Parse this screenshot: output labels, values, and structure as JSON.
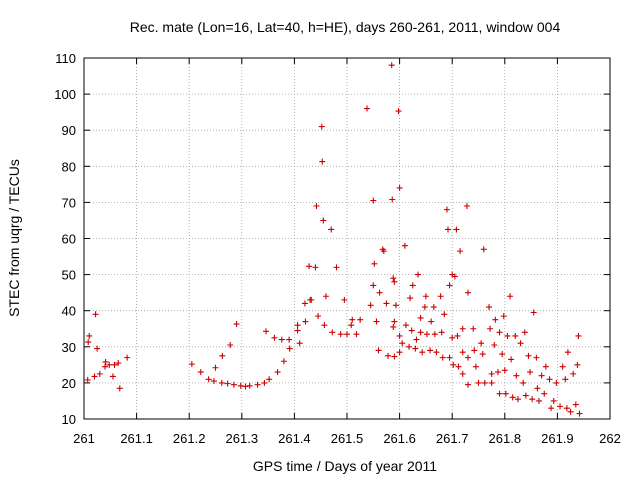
{
  "chart_data": {
    "type": "scatter",
    "title": "Rec. mate (Lon=16, Lat=40, h=HE), days 260-261, 2011, window 004",
    "xlabel": "GPS time / Days of year 2011",
    "ylabel": "STEC from uqrg / TECUs",
    "xlim": [
      261,
      262
    ],
    "ylim": [
      10,
      110
    ],
    "xticks": [
      "261",
      "261.1",
      "261.2",
      "261.3",
      "261.4",
      "261.5",
      "261.6",
      "261.7",
      "261.8",
      "261.9",
      "262"
    ],
    "yticks": [
      "10",
      "20",
      "30",
      "40",
      "50",
      "60",
      "70",
      "80",
      "90",
      "100",
      "110"
    ],
    "grid": true,
    "marker": "plus",
    "color": "#cc0000",
    "points": [
      [
        261.007,
        20.8
      ],
      [
        261.008,
        31.3
      ],
      [
        261.01,
        33.0
      ],
      [
        261.02,
        21.8
      ],
      [
        261.022,
        39.0
      ],
      [
        261.025,
        29.5
      ],
      [
        261.03,
        22.5
      ],
      [
        261.04,
        24.5
      ],
      [
        261.041,
        25.8
      ],
      [
        261.048,
        25.0
      ],
      [
        261.055,
        21.8
      ],
      [
        261.058,
        25.0
      ],
      [
        261.065,
        25.5
      ],
      [
        261.068,
        18.5
      ],
      [
        261.082,
        27.0
      ],
      [
        261.205,
        25.2
      ],
      [
        261.222,
        23.0
      ],
      [
        261.237,
        21.0
      ],
      [
        261.247,
        20.5
      ],
      [
        261.25,
        24.2
      ],
      [
        261.262,
        20.0
      ],
      [
        261.263,
        27.5
      ],
      [
        261.273,
        19.8
      ],
      [
        261.278,
        30.5
      ],
      [
        261.285,
        19.5
      ],
      [
        261.29,
        36.3
      ],
      [
        261.298,
        19.2
      ],
      [
        261.307,
        19.0
      ],
      [
        261.315,
        19.2
      ],
      [
        261.33,
        19.5
      ],
      [
        261.343,
        20.0
      ],
      [
        261.346,
        34.3
      ],
      [
        261.352,
        21.0
      ],
      [
        261.362,
        32.5
      ],
      [
        261.368,
        23.0
      ],
      [
        261.376,
        32.0
      ],
      [
        261.38,
        26.0
      ],
      [
        261.39,
        32.0
      ],
      [
        261.391,
        29.5
      ],
      [
        261.406,
        34.5
      ],
      [
        261.406,
        36.0
      ],
      [
        261.41,
        31.0
      ],
      [
        261.42,
        42.0
      ],
      [
        261.421,
        37.0
      ],
      [
        261.428,
        52.3
      ],
      [
        261.43,
        43.0
      ],
      [
        261.432,
        43.0
      ],
      [
        261.44,
        52.0
      ],
      [
        261.442,
        69.0
      ],
      [
        261.445,
        38.5
      ],
      [
        261.452,
        91.0
      ],
      [
        261.453,
        81.3
      ],
      [
        261.455,
        65.0
      ],
      [
        261.457,
        36.0
      ],
      [
        261.46,
        44.0
      ],
      [
        261.47,
        62.5
      ],
      [
        261.472,
        34.0
      ],
      [
        261.48,
        52.0
      ],
      [
        261.488,
        33.5
      ],
      [
        261.495,
        43.0
      ],
      [
        261.5,
        33.5
      ],
      [
        261.508,
        36.0
      ],
      [
        261.51,
        37.5
      ],
      [
        261.518,
        33.5
      ],
      [
        261.525,
        37.5
      ],
      [
        261.538,
        96.0
      ],
      [
        261.545,
        41.5
      ],
      [
        261.55,
        47.0
      ],
      [
        261.55,
        70.5
      ],
      [
        261.552,
        53.0
      ],
      [
        261.556,
        37.0
      ],
      [
        261.56,
        29.0
      ],
      [
        261.562,
        45.0
      ],
      [
        261.568,
        57.0
      ],
      [
        261.57,
        56.5
      ],
      [
        261.575,
        42.0
      ],
      [
        261.578,
        27.5
      ],
      [
        261.585,
        108.0
      ],
      [
        261.586,
        70.8
      ],
      [
        261.588,
        49.0
      ],
      [
        261.59,
        48.0
      ],
      [
        261.588,
        35.5
      ],
      [
        261.59,
        37.0
      ],
      [
        261.59,
        27.3
      ],
      [
        261.593,
        41.5
      ],
      [
        261.598,
        95.3
      ],
      [
        261.6,
        74.0
      ],
      [
        261.6,
        33.0
      ],
      [
        261.605,
        31.0
      ],
      [
        261.6,
        28.5
      ],
      [
        261.61,
        58.0
      ],
      [
        261.612,
        36.0
      ],
      [
        261.618,
        30.0
      ],
      [
        261.62,
        43.5
      ],
      [
        261.623,
        34.5
      ],
      [
        261.625,
        47.0
      ],
      [
        261.63,
        29.5
      ],
      [
        261.632,
        32.0
      ],
      [
        261.635,
        50.0
      ],
      [
        261.64,
        38.0
      ],
      [
        261.64,
        34.0
      ],
      [
        261.643,
        28.5
      ],
      [
        261.648,
        41.0
      ],
      [
        261.65,
        44.0
      ],
      [
        261.652,
        33.5
      ],
      [
        261.658,
        29.0
      ],
      [
        261.66,
        37.0
      ],
      [
        261.665,
        41.0
      ],
      [
        261.667,
        33.5
      ],
      [
        261.67,
        28.5
      ],
      [
        261.678,
        44.0
      ],
      [
        261.68,
        34.0
      ],
      [
        261.682,
        27.0
      ],
      [
        261.685,
        39.0
      ],
      [
        261.69,
        68.0
      ],
      [
        261.692,
        62.5
      ],
      [
        261.695,
        47.0
      ],
      [
        261.695,
        27.0
      ],
      [
        261.7,
        50.0
      ],
      [
        261.7,
        32.5
      ],
      [
        261.702,
        25.0
      ],
      [
        261.705,
        49.5
      ],
      [
        261.708,
        62.5
      ],
      [
        261.71,
        33.0
      ],
      [
        261.712,
        24.5
      ],
      [
        261.715,
        56.5
      ],
      [
        261.72,
        35.0
      ],
      [
        261.72,
        28.5
      ],
      [
        261.72,
        22.5
      ],
      [
        261.728,
        69.0
      ],
      [
        261.73,
        45.0
      ],
      [
        261.73,
        27.0
      ],
      [
        261.73,
        19.5
      ],
      [
        261.74,
        35.0
      ],
      [
        261.742,
        29.0
      ],
      [
        261.745,
        24.5
      ],
      [
        261.75,
        20.0
      ],
      [
        261.755,
        31.0
      ],
      [
        261.76,
        57.0
      ],
      [
        261.758,
        28.0
      ],
      [
        261.762,
        20.0
      ],
      [
        261.77,
        41.0
      ],
      [
        261.772,
        35.0
      ],
      [
        261.775,
        22.5
      ],
      [
        261.775,
        20.0
      ],
      [
        261.78,
        30.5
      ],
      [
        261.782,
        37.5
      ],
      [
        261.787,
        23.0
      ],
      [
        261.79,
        34.0
      ],
      [
        261.79,
        17.0
      ],
      [
        261.795,
        28.0
      ],
      [
        261.798,
        38.5
      ],
      [
        261.8,
        23.5
      ],
      [
        261.802,
        17.0
      ],
      [
        261.805,
        33.0
      ],
      [
        261.81,
        44.0
      ],
      [
        261.812,
        26.5
      ],
      [
        261.815,
        16.0
      ],
      [
        261.82,
        33.0
      ],
      [
        261.822,
        22.0
      ],
      [
        261.825,
        15.5
      ],
      [
        261.83,
        31.0
      ],
      [
        261.835,
        20.0
      ],
      [
        261.838,
        34.0
      ],
      [
        261.84,
        16.5
      ],
      [
        261.845,
        27.5
      ],
      [
        261.848,
        23.0
      ],
      [
        261.852,
        15.5
      ],
      [
        261.855,
        39.5
      ],
      [
        261.86,
        27.0
      ],
      [
        261.862,
        18.5
      ],
      [
        261.865,
        15.0
      ],
      [
        261.87,
        22.0
      ],
      [
        261.875,
        17.0
      ],
      [
        261.878,
        24.5
      ],
      [
        261.885,
        21.0
      ],
      [
        261.888,
        13.0
      ],
      [
        261.893,
        15.0
      ],
      [
        261.898,
        20.0
      ],
      [
        261.905,
        13.5
      ],
      [
        261.91,
        24.5
      ],
      [
        261.915,
        21.0
      ],
      [
        261.918,
        13.0
      ],
      [
        261.92,
        28.5
      ],
      [
        261.925,
        12.0
      ],
      [
        261.93,
        22.5
      ],
      [
        261.935,
        14.0
      ],
      [
        261.938,
        25.0
      ],
      [
        261.94,
        33.0
      ],
      [
        261.942,
        11.5
      ]
    ]
  }
}
